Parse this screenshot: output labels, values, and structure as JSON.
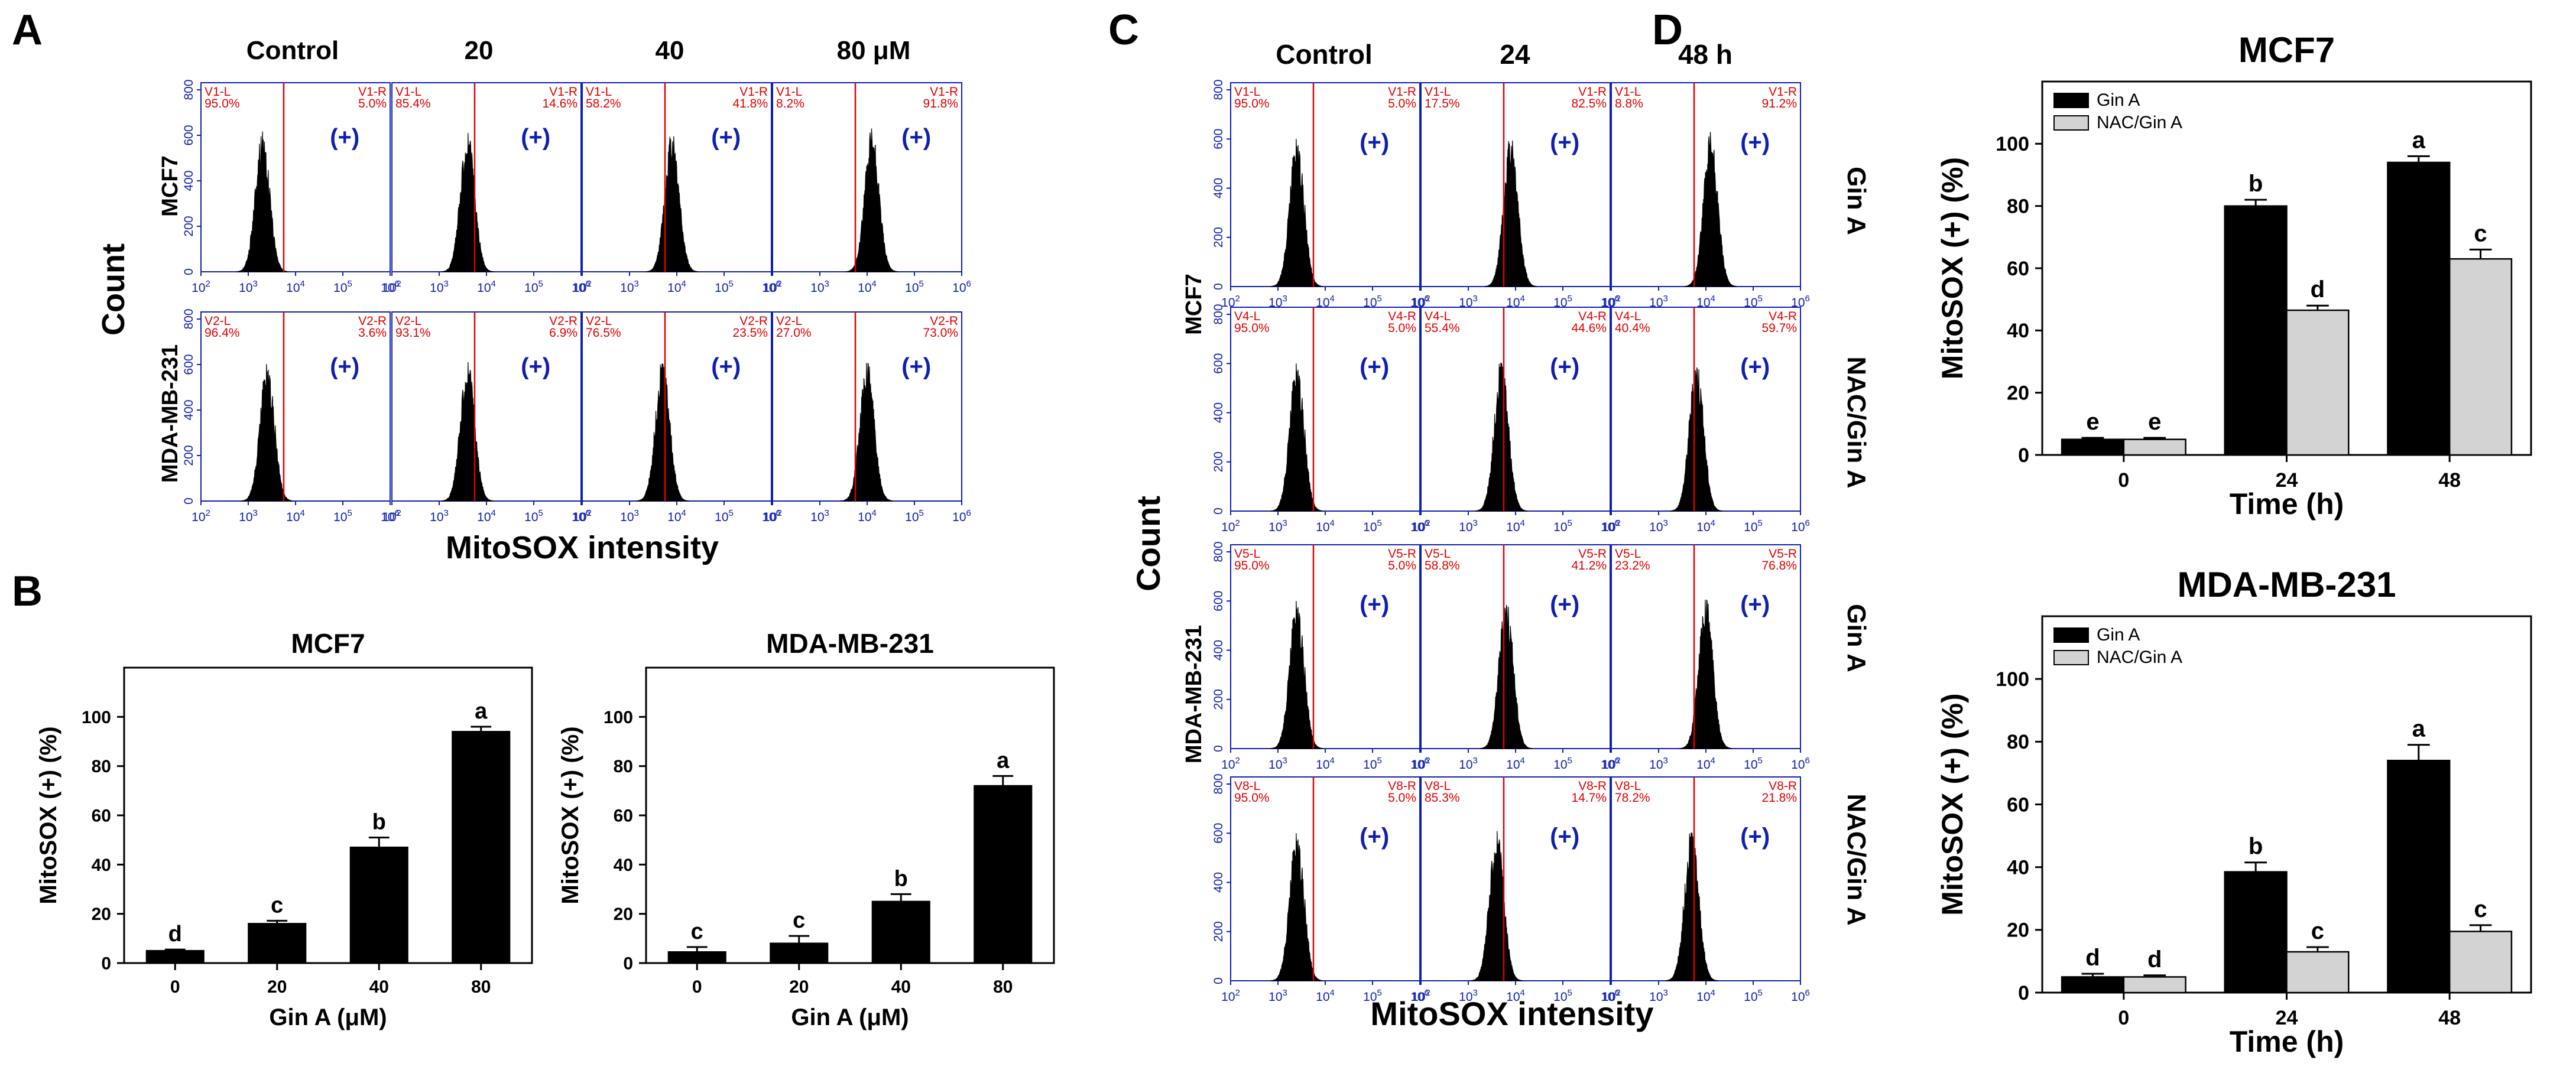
{
  "panel_letters": [
    "A",
    "B",
    "C",
    "D"
  ],
  "colors": {
    "text": "#000000",
    "flow_frame": "#0f20b0",
    "gate_line": "#e00000",
    "percent_text": "#e00000",
    "bar_dark": "#000000",
    "bar_light": "#d3d3d3"
  },
  "flow_common": {
    "positive_label": "(+)",
    "y_ticks": [
      "0",
      "200",
      "400",
      "600",
      "800"
    ],
    "x_exponents": [
      "2",
      "3",
      "4",
      "5",
      "6"
    ],
    "x_base": "10"
  },
  "panelA": {
    "col_titles": [
      "Control",
      "20",
      "40",
      "80 μM"
    ],
    "row_labels": [
      "MCF7",
      "MDA-MB-231"
    ],
    "y_title": "Count",
    "x_title": "MitoSOX intensity",
    "rows": [
      [
        {
          "gl": "V1-L",
          "gr": "V1-R",
          "lp": "95.0%",
          "rp": "5.0%",
          "peak": 3.3
        },
        {
          "gl": "V1-L",
          "gr": "V1-R",
          "lp": "85.4%",
          "rp": "14.6%",
          "peak": 3.6
        },
        {
          "gl": "V1-L",
          "gr": "V1-R",
          "lp": "58.2%",
          "rp": "41.8%",
          "peak": 3.9
        },
        {
          "gl": "V1-L",
          "gr": "V1-R",
          "lp": "8.2%",
          "rp": "91.8%",
          "peak": 4.1
        }
      ],
      [
        {
          "gl": "V2-L",
          "gr": "V2-R",
          "lp": "96.4%",
          "rp": "3.6%",
          "peak": 3.4
        },
        {
          "gl": "V2-L",
          "gr": "V2-R",
          "lp": "93.1%",
          "rp": "6.9%",
          "peak": 3.6
        },
        {
          "gl": "V2-L",
          "gr": "V2-R",
          "lp": "76.5%",
          "rp": "23.5%",
          "peak": 3.7
        },
        {
          "gl": "V2-L",
          "gr": "V2-R",
          "lp": "27.0%",
          "rp": "73.0%",
          "peak": 4.0
        }
      ]
    ]
  },
  "panelC": {
    "col_titles": [
      "Control",
      "24",
      "48 h"
    ],
    "group_labels": [
      "MCF7",
      "MDA-MB-231"
    ],
    "row_labels": [
      "Gin A",
      "NAC/Gin A",
      "Gin A",
      "NAC/Gin A"
    ],
    "y_title": "Count",
    "x_title": "MitoSOX intensity",
    "rows": [
      [
        {
          "gl": "V1-L",
          "gr": "V1-R",
          "lp": "95.0%",
          "rp": "5.0%",
          "peak": 3.4
        },
        {
          "gl": "V1-L",
          "gr": "V1-R",
          "lp": "17.5%",
          "rp": "82.5%",
          "peak": 3.9
        },
        {
          "gl": "V1-L",
          "gr": "V1-R",
          "lp": "8.8%",
          "rp": "91.2%",
          "peak": 4.1
        }
      ],
      [
        {
          "gl": "V4-L",
          "gr": "V4-R",
          "lp": "95.0%",
          "rp": "5.0%",
          "peak": 3.4
        },
        {
          "gl": "V4-L",
          "gr": "V4-R",
          "lp": "55.4%",
          "rp": "44.6%",
          "peak": 3.7
        },
        {
          "gl": "V4-L",
          "gr": "V4-R",
          "lp": "40.4%",
          "rp": "59.7%",
          "peak": 3.8
        }
      ],
      [
        {
          "gl": "V5-L",
          "gr": "V5-R",
          "lp": "95.0%",
          "rp": "5.0%",
          "peak": 3.4
        },
        {
          "gl": "V5-L",
          "gr": "V5-R",
          "lp": "58.8%",
          "rp": "41.2%",
          "peak": 3.8
        },
        {
          "gl": "V5-L",
          "gr": "V5-R",
          "lp": "23.2%",
          "rp": "76.8%",
          "peak": 4.0
        }
      ],
      [
        {
          "gl": "V8-L",
          "gr": "V8-R",
          "lp": "95.0%",
          "rp": "5.0%",
          "peak": 3.4
        },
        {
          "gl": "V8-L",
          "gr": "V8-R",
          "lp": "85.3%",
          "rp": "14.7%",
          "peak": 3.6
        },
        {
          "gl": "V8-L",
          "gr": "V8-R",
          "lp": "78.2%",
          "rp": "21.8%",
          "peak": 3.7
        }
      ]
    ]
  },
  "chart_data": [
    {
      "id": "B-MCF7",
      "type": "bar",
      "title": "MCF7",
      "xlabel": "Gin A (μM)",
      "ylabel": "MitoSOX (+) (%)",
      "categories": [
        "0",
        "20",
        "40",
        "80"
      ],
      "ylim": [
        0,
        120
      ],
      "yticks": [
        0,
        20,
        40,
        60,
        80,
        100
      ],
      "series": [
        {
          "name": "Gin A",
          "color": "#000000",
          "values": [
            5,
            16,
            47,
            94
          ],
          "errors": [
            0.5,
            1.2,
            4,
            2
          ],
          "letters": [
            "d",
            "c",
            "b",
            "a"
          ]
        }
      ]
    },
    {
      "id": "B-MDA",
      "type": "bar",
      "title": "MDA-MB-231",
      "xlabel": "Gin A (μM)",
      "ylabel": "MitoSOX (+) (%)",
      "categories": [
        "0",
        "20",
        "40",
        "80"
      ],
      "ylim": [
        0,
        120
      ],
      "yticks": [
        0,
        20,
        40,
        60,
        80,
        100
      ],
      "series": [
        {
          "name": "Gin A",
          "color": "#000000",
          "values": [
            4.5,
            8,
            25,
            72
          ],
          "errors": [
            2,
            3,
            3,
            4
          ],
          "letters": [
            "c",
            "c",
            "b",
            "a"
          ]
        }
      ]
    },
    {
      "id": "D-MCF7",
      "type": "bar",
      "title": "MCF7",
      "xlabel": "Time (h)",
      "ylabel": "MitoSOX (+) (%)",
      "categories": [
        "0",
        "24",
        "48"
      ],
      "ylim": [
        0,
        120
      ],
      "yticks": [
        0,
        20,
        40,
        60,
        80,
        100
      ],
      "legend": "top-left",
      "series": [
        {
          "name": "Gin A",
          "color": "#000000",
          "values": [
            5,
            80,
            94
          ],
          "errors": [
            0.5,
            2,
            2
          ],
          "letters": [
            "e",
            "b",
            "a"
          ]
        },
        {
          "name": "NAC/Gin A",
          "color": "#d3d3d3",
          "values": [
            5,
            46.5,
            63
          ],
          "errors": [
            0.5,
            1.5,
            3
          ],
          "letters": [
            "e",
            "d",
            "c"
          ]
        }
      ]
    },
    {
      "id": "D-MDA",
      "type": "bar",
      "title": "MDA-MB-231",
      "xlabel": "Time (h)",
      "ylabel": "MitoSOX (+) (%)",
      "categories": [
        "0",
        "24",
        "48"
      ],
      "ylim": [
        0,
        120
      ],
      "yticks": [
        0,
        20,
        40,
        60,
        80,
        100
      ],
      "legend": "top-left",
      "series": [
        {
          "name": "Gin A",
          "color": "#000000",
          "values": [
            5,
            38.5,
            74
          ],
          "errors": [
            1,
            3,
            5
          ],
          "letters": [
            "d",
            "b",
            "a"
          ]
        },
        {
          "name": "NAC/Gin A",
          "color": "#d3d3d3",
          "values": [
            5,
            13,
            19.5
          ],
          "errors": [
            0.5,
            1.5,
            2
          ],
          "letters": [
            "d",
            "c",
            "c"
          ]
        }
      ]
    }
  ]
}
